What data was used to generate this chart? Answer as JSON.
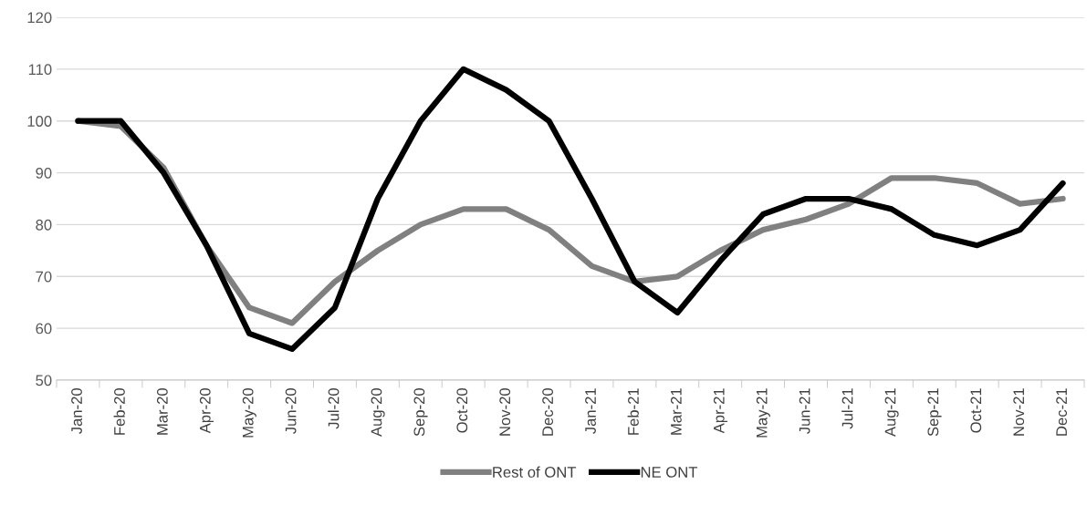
{
  "chart_data": {
    "type": "line",
    "categories": [
      "Jan-20",
      "Feb-20",
      "Mar-20",
      "Apr-20",
      "May-20",
      "Jun-20",
      "Jul-20",
      "Aug-20",
      "Sep-20",
      "Oct-20",
      "Nov-20",
      "Dec-20",
      "Jan-21",
      "Feb-21",
      "Mar-21",
      "Apr-21",
      "May-21",
      "Jun-21",
      "Jul-21",
      "Aug-21",
      "Sep-21",
      "Oct-21",
      "Nov-21",
      "Dec-21"
    ],
    "series": [
      {
        "name": "Rest of ONT",
        "color": "#808080",
        "values": [
          100,
          99,
          91,
          76,
          64,
          61,
          69,
          75,
          80,
          83,
          83,
          79,
          72,
          69,
          70,
          75,
          79,
          81,
          84,
          89,
          89,
          88,
          84,
          85
        ]
      },
      {
        "name": "NE ONT",
        "color": "#000000",
        "values": [
          100,
          100,
          90,
          76,
          59,
          56,
          64,
          85,
          100,
          110,
          106,
          100,
          85,
          69,
          63,
          73,
          82,
          85,
          85,
          83,
          78,
          76,
          79,
          88
        ]
      }
    ],
    "ylim": [
      50,
      120
    ],
    "yticks": [
      50,
      60,
      70,
      80,
      90,
      100,
      110,
      120
    ],
    "grid": "y",
    "legend": "bottom",
    "marker": "none",
    "line_style": "solid"
  }
}
